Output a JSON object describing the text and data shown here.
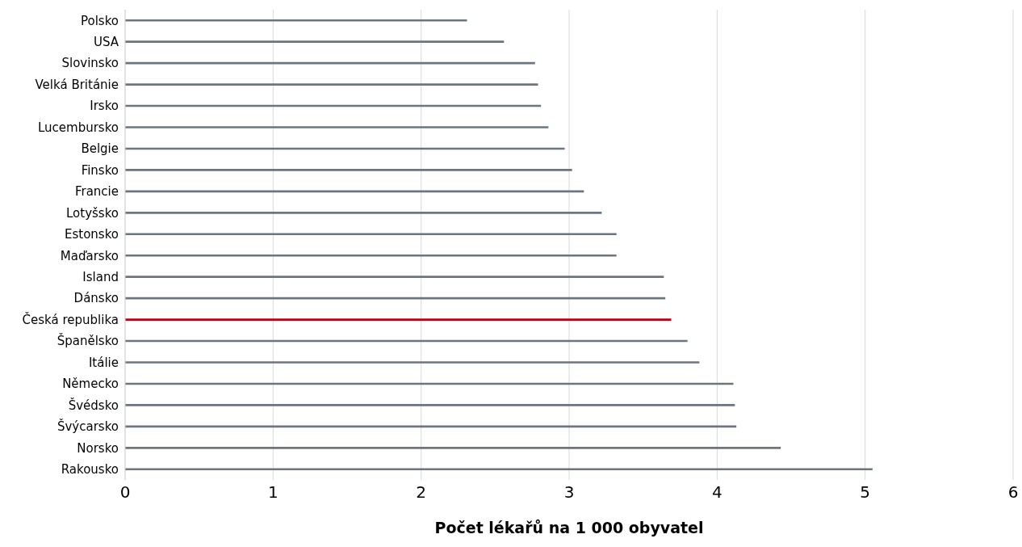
{
  "chart_data": {
    "type": "bar",
    "orientation": "horizontal",
    "xlabel": "Počet lékařů na 1 000 obyvatel",
    "categories": [
      "Polsko",
      "USA",
      "Slovinsko",
      "Velká Británie",
      "Irsko",
      "Lucembursko",
      "Belgie",
      "Finsko",
      "Francie",
      "Lotyšsko",
      "Estonsko",
      "Maďarsko",
      "Island",
      "Dánsko",
      "Česká republika",
      "Španělsko",
      "Itálie",
      "Německo",
      "Švédsko",
      "Švýcarsko",
      "Norsko",
      "Rakousko"
    ],
    "values": [
      2.31,
      2.56,
      2.77,
      2.79,
      2.81,
      2.86,
      2.97,
      3.02,
      3.1,
      3.22,
      3.32,
      3.32,
      3.64,
      3.65,
      3.69,
      3.8,
      3.88,
      4.11,
      4.12,
      4.13,
      4.43,
      5.05
    ],
    "colors": [
      "#6d7581",
      "#6d7581",
      "#6d7581",
      "#6d7581",
      "#6d7581",
      "#6d7581",
      "#6d7581",
      "#6d7581",
      "#6d7581",
      "#6d7581",
      "#6d7581",
      "#6d7581",
      "#6d7581",
      "#6d7581",
      "#c00010",
      "#6d7581",
      "#6d7581",
      "#6d7581",
      "#6d7581",
      "#6d7581",
      "#6d7581",
      "#6d7581"
    ],
    "xlim": [
      0,
      6
    ],
    "xticks": [
      0,
      1,
      2,
      3,
      4,
      5,
      6
    ],
    "grid": "x"
  }
}
